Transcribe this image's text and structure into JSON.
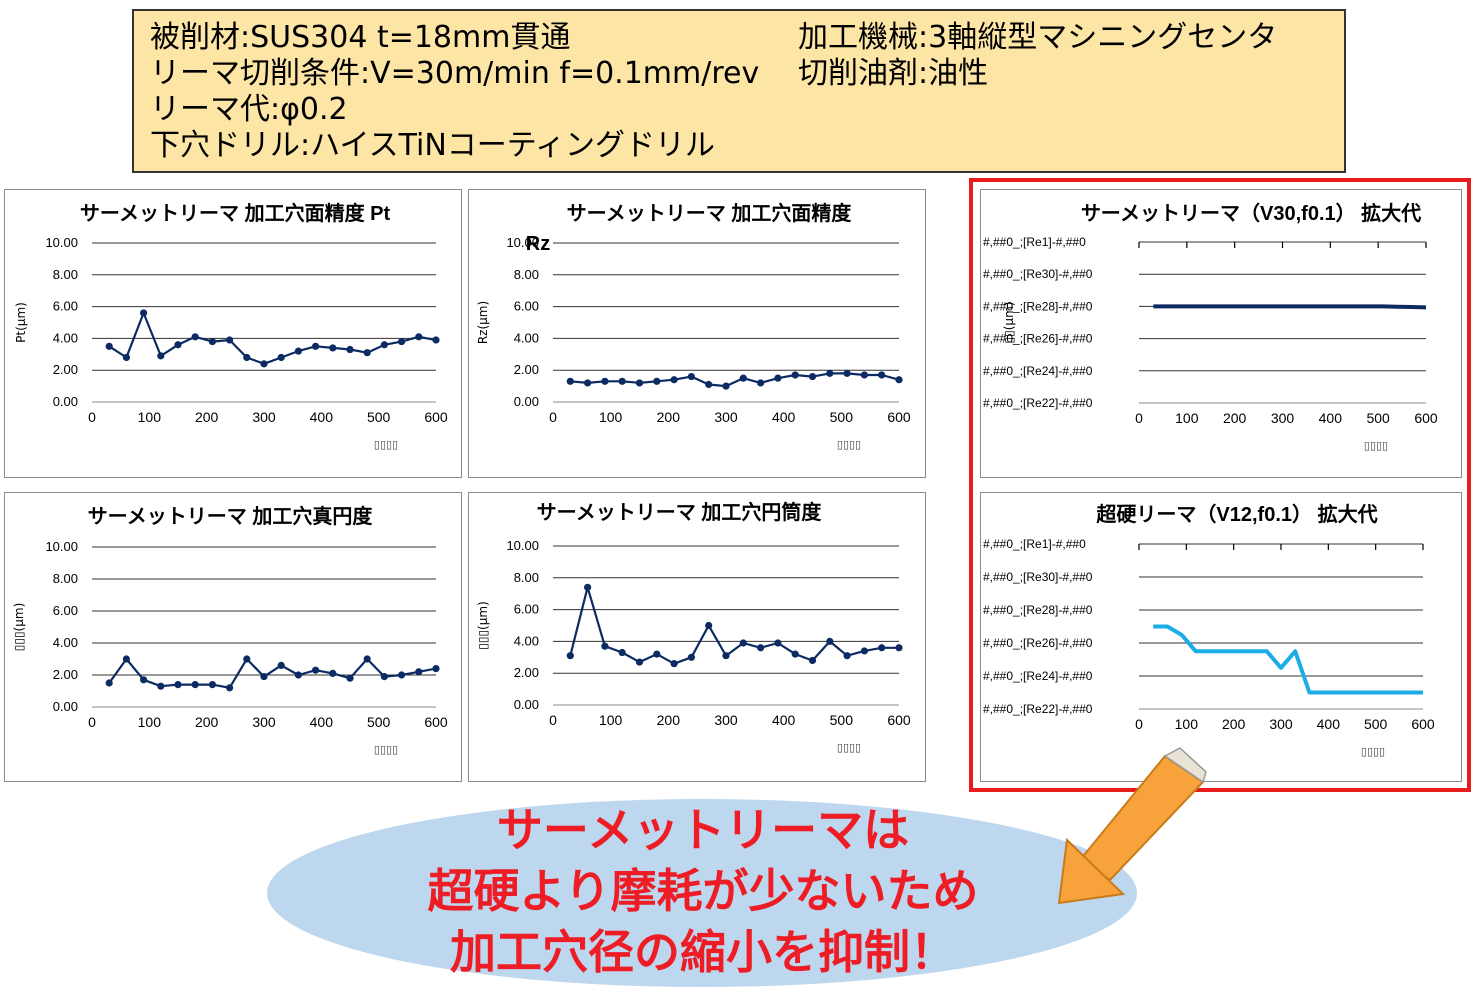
{
  "info": {
    "line1": "被削材:SUS304 t=18mm貫通",
    "line2": "リーマ切削条件:V=30m/min f=0.1mm/rev",
    "line3": "リーマ代:φ0.2",
    "line4": "下穴ドリル:ハイスTiNコーティングドリル",
    "line5": "加工機械:3軸縦型マシニングセンタ",
    "line6": "切削油剤:油性"
  },
  "callout": {
    "line1": "サーメットリーマは",
    "line2": "超硬より摩耗が少ないため",
    "line3": "加工穴径の縮小を抑制！"
  },
  "colors": {
    "info_bg": "#fde5a6",
    "series_dark": "#0d2b63",
    "series_light": "#1aade6",
    "highlight": "#e81c1c",
    "callout_text": "#ee1c25",
    "ellipse": "#bdd7ee",
    "arrow": "#f7a23b"
  },
  "chart_data": [
    {
      "type": "line",
      "title": "サーメットリーマ 加工穴面精度 Pt",
      "ylabel": "Pt(μm)",
      "xlabel": "▯▯▯▯",
      "ylim": [
        0,
        10
      ],
      "yticks": [
        "0.00",
        "2.00",
        "4.00",
        "6.00",
        "8.00",
        "10.00"
      ],
      "xlim": [
        0,
        600
      ],
      "xticks": [
        "0",
        "100",
        "200",
        "300",
        "400",
        "500",
        "600"
      ],
      "x": [
        30,
        60,
        90,
        120,
        150,
        180,
        210,
        240,
        270,
        300,
        330,
        360,
        390,
        420,
        450,
        480,
        510,
        540,
        570,
        600
      ],
      "values": [
        3.5,
        2.8,
        5.6,
        2.9,
        3.6,
        4.1,
        3.8,
        3.9,
        2.8,
        2.4,
        2.8,
        3.2,
        3.5,
        3.4,
        3.3,
        3.1,
        3.6,
        3.8,
        4.1,
        3.9
      ],
      "markers": true
    },
    {
      "type": "line",
      "title": "サーメットリーマ  加工穴面精度 Rz",
      "ylabel": "Rz(μm)",
      "xlabel": "▯▯▯▯",
      "ylim": [
        0,
        10
      ],
      "yticks": [
        "0.00",
        "2.00",
        "4.00",
        "6.00",
        "8.00",
        "10.00"
      ],
      "xlim": [
        0,
        600
      ],
      "xticks": [
        "0",
        "100",
        "200",
        "300",
        "400",
        "500",
        "600"
      ],
      "x": [
        30,
        60,
        90,
        120,
        150,
        180,
        210,
        240,
        270,
        300,
        330,
        360,
        390,
        420,
        450,
        480,
        510,
        540,
        570,
        600
      ],
      "values": [
        1.3,
        1.2,
        1.3,
        1.3,
        1.2,
        1.3,
        1.4,
        1.6,
        1.1,
        1.0,
        1.5,
        1.2,
        1.5,
        1.7,
        1.6,
        1.8,
        1.8,
        1.7,
        1.7,
        1.4
      ],
      "markers": true
    },
    {
      "type": "line",
      "title": "サーメットリーマ（V30,f0.1）  拡大代",
      "ylabel": "▯▯(μm)",
      "xlabel": "▯▯▯▯",
      "yticks": [
        "#,##0_;[Re22]-#,##0",
        "#,##0_;[Re24]-#,##0",
        "#,##0_;[Re26]-#,##0",
        "#,##0_;[Re28]-#,##0",
        "#,##0_;[Re30]-#,##0",
        "#,##0_;[Re1]-#,##0"
      ],
      "ylim": [
        0,
        5
      ],
      "xlim": [
        0,
        600
      ],
      "xticks": [
        "0",
        "100",
        "200",
        "300",
        "400",
        "500",
        "600"
      ],
      "x": [
        30,
        60,
        90,
        120,
        150,
        180,
        210,
        240,
        270,
        300,
        330,
        360,
        390,
        420,
        450,
        480,
        510,
        540,
        570,
        600
      ],
      "values": [
        3.0,
        3.0,
        3.0,
        3.0,
        3.0,
        3.0,
        3.0,
        3.0,
        3.0,
        3.0,
        3.0,
        3.0,
        3.0,
        3.0,
        3.0,
        3.0,
        3.0,
        2.99,
        2.98,
        2.97
      ],
      "markers": false
    },
    {
      "type": "line",
      "title": "超硬リーマ（V12,f0.1）    拡大代",
      "ylabel": "",
      "xlabel": "▯▯▯▯",
      "yticks": [
        "#,##0_;[Re22]-#,##0",
        "#,##0_;[Re24]-#,##0",
        "#,##0_;[Re26]-#,##0",
        "#,##0_;[Re28]-#,##0",
        "#,##0_;[Re30]-#,##0",
        "#,##0_;[Re1]-#,##0"
      ],
      "ylim": [
        0,
        5
      ],
      "xlim": [
        0,
        600
      ],
      "xticks": [
        "0",
        "100",
        "200",
        "300",
        "400",
        "500",
        "600"
      ],
      "x": [
        30,
        60,
        90,
        120,
        150,
        180,
        210,
        240,
        270,
        300,
        330,
        360,
        390,
        420,
        450,
        480,
        510,
        540,
        570,
        600
      ],
      "values": [
        2.5,
        2.5,
        2.25,
        1.75,
        1.75,
        1.75,
        1.75,
        1.75,
        1.75,
        1.25,
        1.75,
        0.5,
        0.5,
        0.5,
        0.5,
        0.5,
        0.5,
        0.5,
        0.5,
        0.5
      ],
      "markers": false
    },
    {
      "type": "line",
      "title": "サーメットリーマ 加工穴真円度",
      "ylabel": "▯▯▯(μm)",
      "xlabel": "▯▯▯▯",
      "ylim": [
        0,
        10
      ],
      "yticks": [
        "0.00",
        "2.00",
        "4.00",
        "6.00",
        "8.00",
        "10.00"
      ],
      "xlim": [
        0,
        600
      ],
      "xticks": [
        "0",
        "100",
        "200",
        "300",
        "400",
        "500",
        "600"
      ],
      "x": [
        30,
        60,
        90,
        120,
        150,
        180,
        210,
        240,
        270,
        300,
        330,
        360,
        390,
        420,
        450,
        480,
        510,
        540,
        570,
        600
      ],
      "values": [
        1.5,
        3.0,
        1.7,
        1.3,
        1.4,
        1.4,
        1.4,
        1.2,
        3.0,
        1.9,
        2.6,
        2.0,
        2.3,
        2.1,
        1.8,
        3.0,
        1.9,
        2.0,
        2.2,
        2.4
      ],
      "markers": true
    },
    {
      "type": "line",
      "title": "サーメットリーマ 加工穴円筒度",
      "ylabel": "▯▯▯(μm)",
      "xlabel": "▯▯▯▯",
      "ylim": [
        0,
        10
      ],
      "yticks": [
        "0.00",
        "2.00",
        "4.00",
        "6.00",
        "8.00",
        "10.00"
      ],
      "xlim": [
        0,
        600
      ],
      "xticks": [
        "0",
        "100",
        "200",
        "300",
        "400",
        "500",
        "600"
      ],
      "x": [
        30,
        60,
        90,
        120,
        150,
        180,
        210,
        240,
        270,
        300,
        330,
        360,
        390,
        420,
        450,
        480,
        510,
        540,
        570,
        600
      ],
      "values": [
        3.1,
        7.4,
        3.7,
        3.3,
        2.7,
        3.2,
        2.6,
        3.0,
        5.0,
        3.1,
        3.9,
        3.6,
        3.9,
        3.2,
        2.8,
        4.0,
        3.1,
        3.4,
        3.6,
        3.6
      ],
      "markers": true
    }
  ]
}
